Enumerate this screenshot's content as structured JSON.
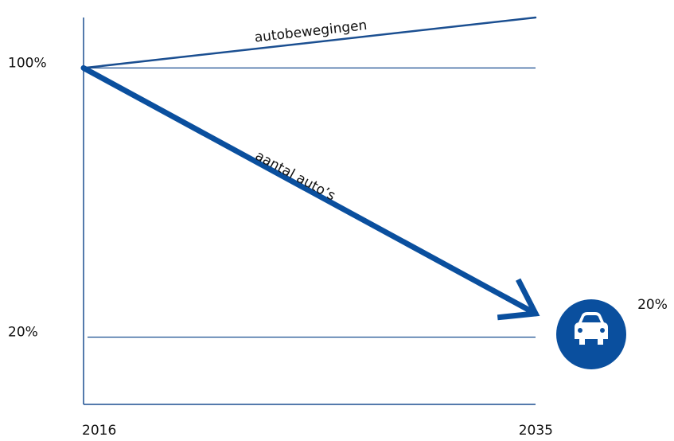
{
  "chart_data": {
    "type": "line",
    "x": [
      2016,
      2035
    ],
    "xlim": [
      2016,
      2035
    ],
    "xticks": [
      2016,
      2035
    ],
    "ylim": [
      0,
      115
    ],
    "yticks": [
      {
        "value": 100,
        "label": "100%"
      },
      {
        "value": 20,
        "label": "20%"
      }
    ],
    "grid": true,
    "series": [
      {
        "name": "autobewegingen",
        "color": "#1b4f91",
        "values": [
          100,
          115
        ]
      },
      {
        "name": "aantal auto’s",
        "color": "#0a4f9e",
        "values": [
          100,
          27
        ]
      }
    ],
    "annotations": [
      {
        "text": "20%"
      }
    ]
  }
}
